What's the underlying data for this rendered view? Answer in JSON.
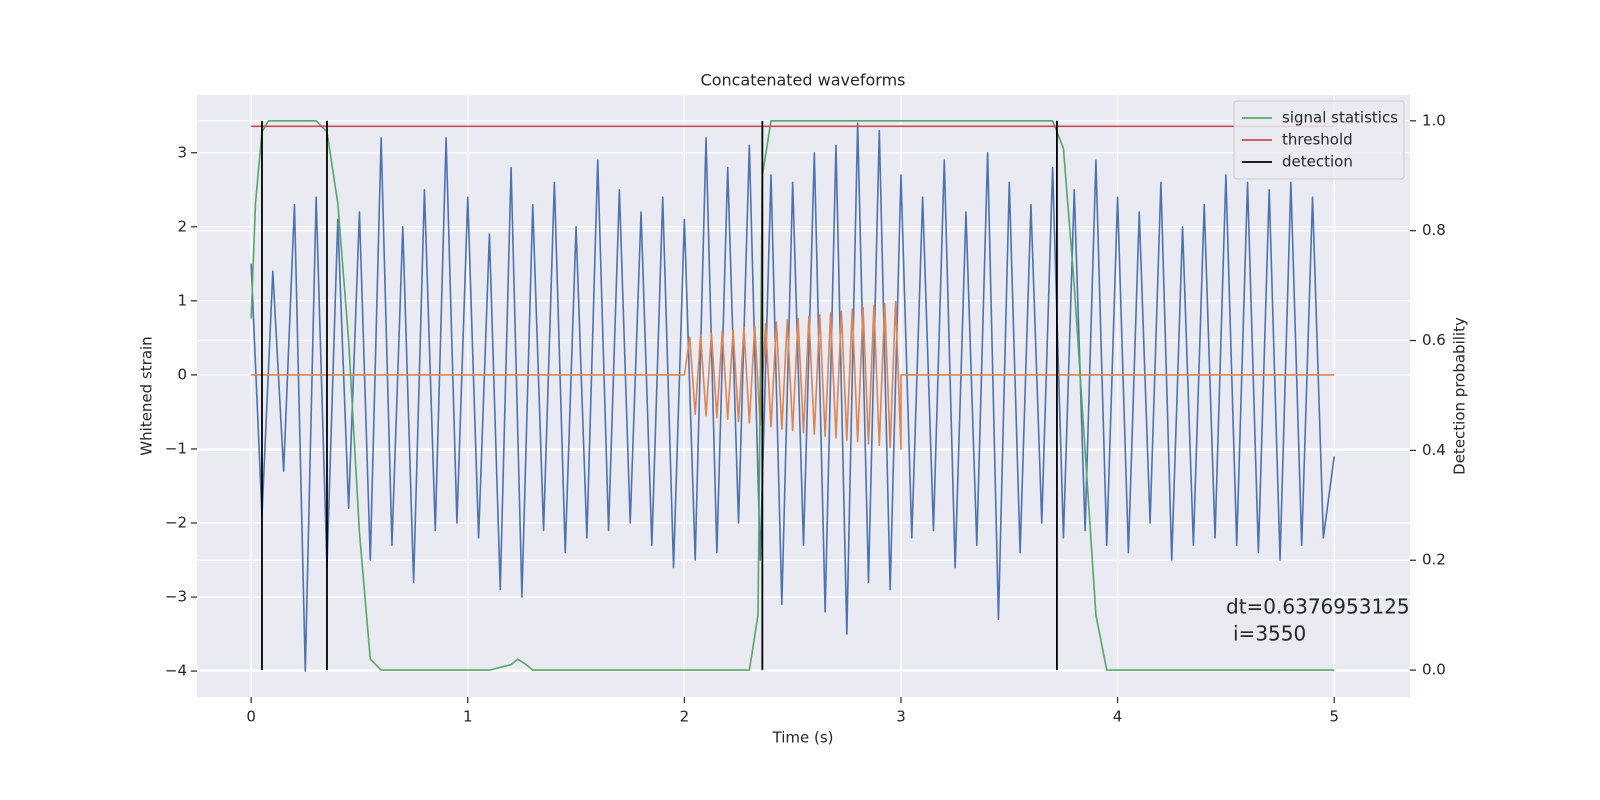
{
  "chart_data": {
    "type": "line",
    "title": "Concatenated waveforms",
    "x_label": "Time (s)",
    "y_label": "Whitened strain",
    "y2_label": "Detection probability",
    "xlim": [
      -0.25,
      5.35
    ],
    "ylim": [
      -4.35,
      3.78
    ],
    "y2lim": [
      -0.049,
      1.047
    ],
    "xticks": [
      0,
      1,
      2,
      3,
      4,
      5
    ],
    "yticks": [
      {
        "value": -4,
        "label": "−4"
      },
      {
        "value": -3,
        "label": "−3"
      },
      {
        "value": -2,
        "label": "−2"
      },
      {
        "value": -1,
        "label": "−1"
      },
      0,
      1,
      2,
      3
    ],
    "y2ticks": [
      {
        "value": 0,
        "label": "0.0"
      },
      0.2,
      0.4,
      0.6,
      0.8,
      {
        "value": 1,
        "label": "1.0"
      }
    ],
    "grid": true,
    "background": "#eaeaf2",
    "legend": "upper right",
    "annotation": [
      "dt=0.6376953125",
      "i=3550"
    ],
    "series": [
      {
        "color": "#4c72b0",
        "x": [
          0,
          0.05,
          0.1,
          0.15,
          0.2,
          0.25,
          0.3,
          0.35,
          0.4,
          0.45,
          0.5,
          0.55,
          0.6,
          0.65,
          0.7,
          0.75,
          0.8,
          0.85,
          0.9,
          0.95,
          1,
          1.05,
          1.1,
          1.15,
          1.2,
          1.25,
          1.3,
          1.35,
          1.4,
          1.45,
          1.5,
          1.55,
          1.6,
          1.65,
          1.7,
          1.75,
          1.8,
          1.85,
          1.9,
          1.95,
          2,
          2.05,
          2.1,
          2.15,
          2.2,
          2.25,
          2.3,
          2.35,
          2.4,
          2.45,
          2.5,
          2.55,
          2.6,
          2.65,
          2.7,
          2.75,
          2.8,
          2.85,
          2.9,
          2.95,
          3,
          3.05,
          3.1,
          3.15,
          3.2,
          3.25,
          3.3,
          3.35,
          3.4,
          3.45,
          3.5,
          3.55,
          3.6,
          3.65,
          3.7,
          3.75,
          3.8,
          3.85,
          3.9,
          3.95,
          4,
          4.05,
          4.1,
          4.15,
          4.2,
          4.25,
          4.3,
          4.35,
          4.4,
          4.45,
          4.5,
          4.55,
          4.6,
          4.65,
          4.7,
          4.75,
          4.8,
          4.85,
          4.9,
          4.95,
          5
        ],
        "values": [
          1.5,
          -1.9,
          1.4,
          -1.3,
          2.3,
          -4.0,
          2.4,
          -2.6,
          2.1,
          -1.8,
          2.2,
          -2.5,
          3.2,
          -2.3,
          2.0,
          -2.8,
          2.5,
          -2.1,
          3.2,
          -2.0,
          2.4,
          -2.2,
          1.9,
          -2.9,
          2.8,
          -3.0,
          2.3,
          -2.1,
          2.6,
          -2.4,
          2.0,
          -2.2,
          2.9,
          -2.1,
          2.5,
          -2.0,
          2.2,
          -2.3,
          2.4,
          -2.6,
          2.1,
          -2.5,
          3.2,
          -2.4,
          2.8,
          -2.0,
          3.1,
          -2.5,
          2.7,
          -3.1,
          2.6,
          -2.3,
          3.0,
          -3.2,
          3.1,
          -3.5,
          3.4,
          -2.8,
          3.3,
          -2.9,
          2.7,
          -2.2,
          2.4,
          -2.1,
          2.9,
          -2.6,
          2.2,
          -2.3,
          3.0,
          -3.3,
          2.6,
          -2.4,
          2.3,
          -2.0,
          2.8,
          -2.2,
          2.5,
          -2.1,
          2.9,
          -2.3,
          2.4,
          -2.4,
          2.2,
          -2.0,
          2.6,
          -2.5,
          2.0,
          -2.3,
          2.3,
          -2.2,
          2.7,
          -2.3,
          2.6,
          -2.4,
          2.5,
          -2.5,
          2.6,
          -2.3,
          2.4,
          -2.2,
          -1.1
        ]
      },
      {
        "color": "#dd8452",
        "x": [
          0,
          2.0,
          2.025,
          2.05,
          2.075,
          2.1,
          2.125,
          2.15,
          2.175,
          2.2,
          2.225,
          2.25,
          2.275,
          2.3,
          2.325,
          2.35,
          2.375,
          2.4,
          2.425,
          2.45,
          2.475,
          2.5,
          2.525,
          2.55,
          2.575,
          2.6,
          2.625,
          2.65,
          2.675,
          2.7,
          2.725,
          2.75,
          2.775,
          2.8,
          2.825,
          2.85,
          2.875,
          2.9,
          2.925,
          2.95,
          2.975,
          3.0,
          3.0,
          5.0
        ],
        "values": [
          0,
          0,
          0.51,
          -0.53,
          0.54,
          -0.55,
          0.56,
          -0.58,
          0.59,
          -0.6,
          0.61,
          -0.63,
          0.64,
          -0.65,
          0.66,
          -0.68,
          0.69,
          -0.7,
          0.71,
          -0.73,
          0.74,
          -0.75,
          0.76,
          -0.78,
          0.79,
          -0.8,
          0.81,
          -0.83,
          0.84,
          -0.85,
          0.86,
          -0.88,
          0.89,
          -0.9,
          0.91,
          -0.93,
          0.94,
          -0.95,
          0.96,
          -0.98,
          0.99,
          -1.0,
          0,
          0
        ]
      },
      {
        "name": "signal statistics",
        "color": "#55a868",
        "axis": "y2",
        "x": [
          0,
          0.02,
          0.05,
          0.08,
          0.3,
          0.35,
          0.4,
          0.45,
          0.5,
          0.55,
          0.6,
          1.1,
          1.2,
          1.23,
          1.27,
          1.3,
          2.3,
          2.34,
          2.36,
          2.4,
          3.7,
          3.75,
          3.8,
          3.85,
          3.9,
          3.95,
          5.0
        ],
        "values": [
          0.64,
          0.85,
          0.98,
          1.0,
          1.0,
          0.98,
          0.85,
          0.6,
          0.25,
          0.02,
          0.0,
          0.0,
          0.01,
          0.02,
          0.01,
          0.0,
          0.0,
          0.1,
          0.9,
          1.0,
          1.0,
          0.95,
          0.7,
          0.4,
          0.1,
          0.0,
          0.0
        ]
      },
      {
        "name": "threshold",
        "color": "#c44e52",
        "axis": "y2",
        "x": [
          0,
          5
        ],
        "values": [
          0.99,
          0.99
        ]
      }
    ],
    "vlines": {
      "name": "detection",
      "color": "#000000",
      "axis": "y2",
      "x": [
        0.05,
        0.35,
        2.36,
        3.72
      ],
      "ymin": 0,
      "ymax": 1
    }
  }
}
